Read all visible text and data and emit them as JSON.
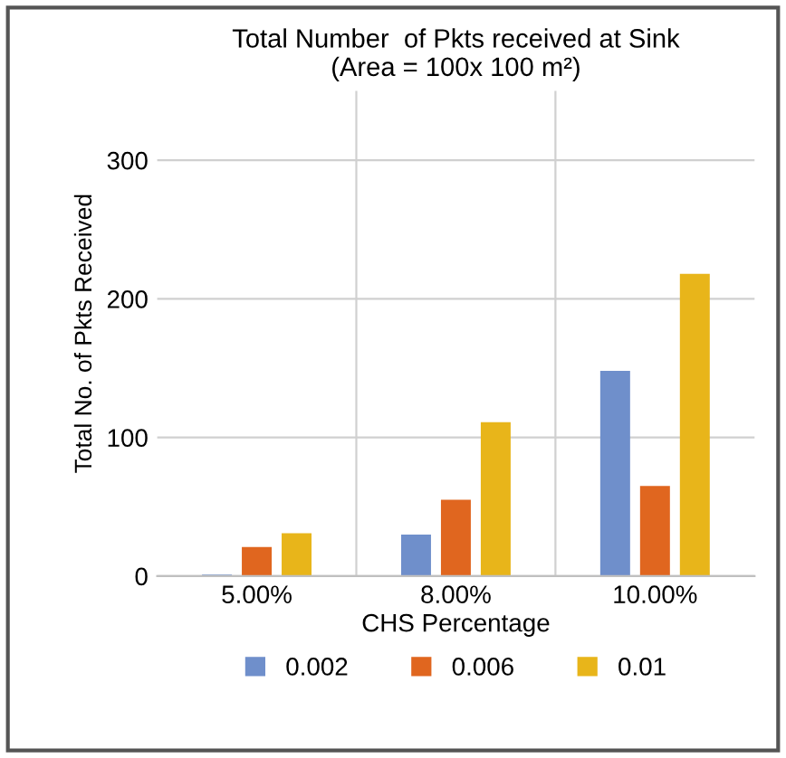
{
  "chart_data": {
    "type": "bar",
    "title": "Total Number  of Pkts received at Sink\n(Area = 100x 100 m²)",
    "xlabel": "CHS Percentage",
    "ylabel": "Total No. of Pkts Received",
    "categories": [
      "5.00%",
      "8.00%",
      "10.00%"
    ],
    "series": [
      {
        "name": "0.002",
        "color": "#6f8fcb",
        "values": [
          1,
          30,
          148
        ]
      },
      {
        "name": "0.006",
        "color": "#e0661f",
        "values": [
          21,
          55,
          65
        ]
      },
      {
        "name": "0.01",
        "color": "#e8b51a",
        "values": [
          31,
          111,
          218
        ]
      }
    ],
    "ylim": [
      0,
      350
    ],
    "yticks": [
      0,
      100,
      200,
      300
    ],
    "grid": true,
    "legend": "bottom"
  }
}
